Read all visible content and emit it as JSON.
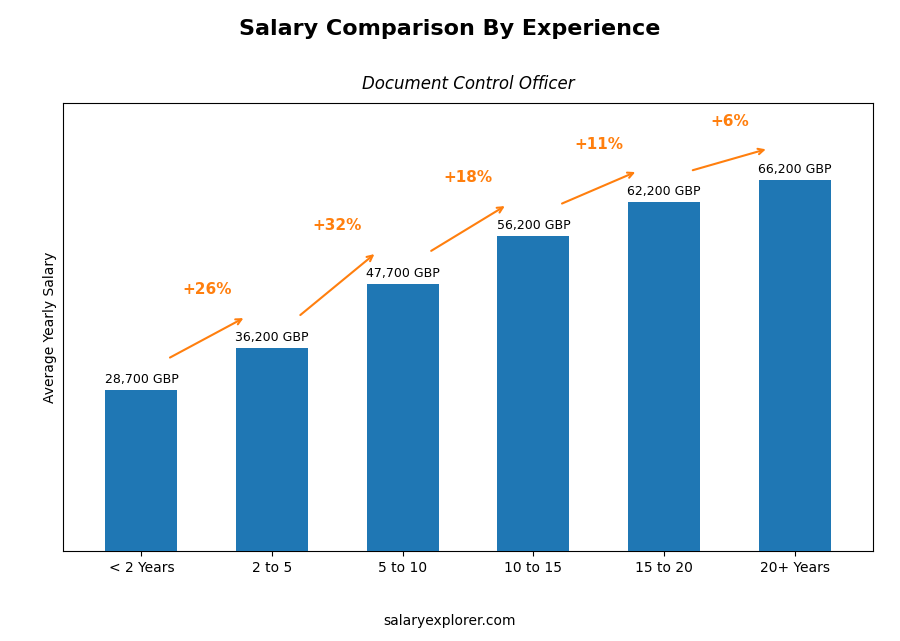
{
  "chart_data": {
    "type": "bar",
    "title": "Salary Comparison By Experience",
    "subtitle": "Document Control Officer",
    "categories": [
      "< 2 Years",
      "2 to 5",
      "5 to 10",
      "10 to 15",
      "15 to 20",
      "20+ Years"
    ],
    "values": [
      28700,
      36200,
      47700,
      56200,
      62200,
      66200
    ],
    "value_labels": [
      "28,700 GBP",
      "36,200 GBP",
      "47,700 GBP",
      "56,200 GBP",
      "62,200 GBP",
      "66,200 GBP"
    ],
    "data_labels": true,
    "annotations": [
      "+26%",
      "+32%",
      "+18%",
      "+11%",
      "+6%"
    ],
    "y_label": "Average Yearly Salary",
    "footer": "salaryexplorer.com",
    "ylim": [
      0,
      80000
    ],
    "tick_labels": "x",
    "grid": false
  }
}
